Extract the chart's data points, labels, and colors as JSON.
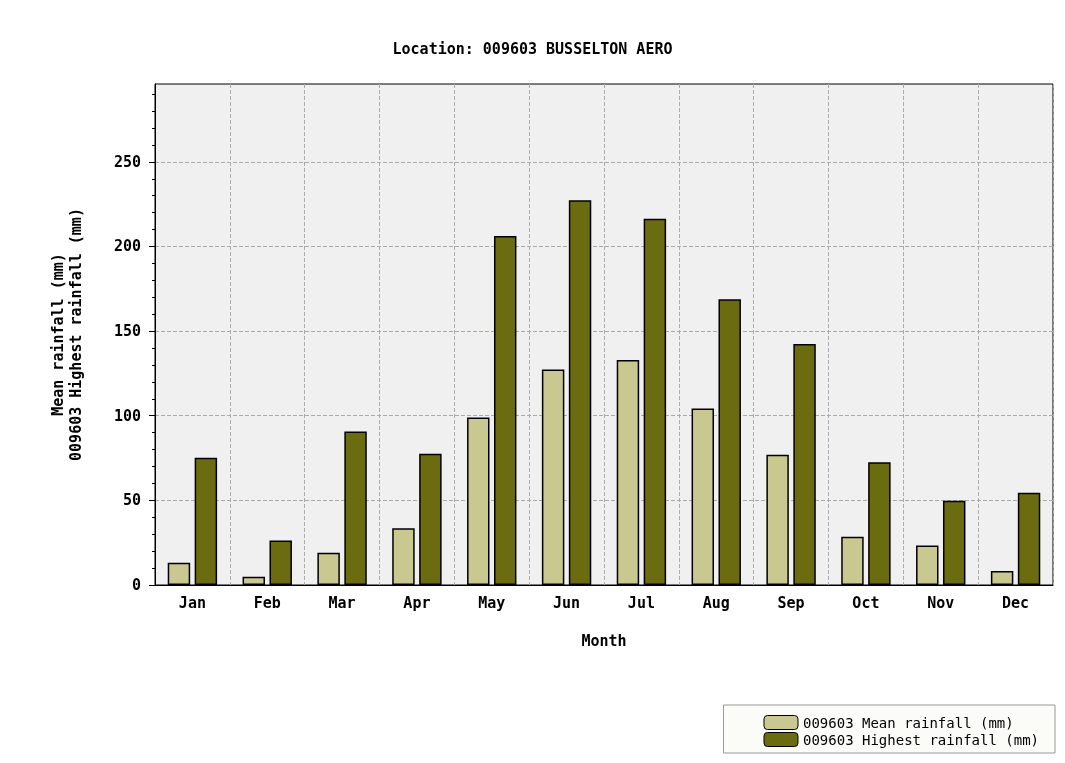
{
  "chart_data": {
    "type": "bar",
    "title": "Location: 009603 BUSSELTON AERO",
    "xlabel": "Month",
    "ylabel": "Mean rainfall (mm)\n009603 Highest rainfall (mm)",
    "categories": [
      "Jan",
      "Feb",
      "Mar",
      "Apr",
      "May",
      "Jun",
      "Jul",
      "Aug",
      "Sep",
      "Oct",
      "Nov",
      "Dec"
    ],
    "series": [
      {
        "name": "009603 Mean rainfall (mm)",
        "color": "#c8c890",
        "values": [
          13.2,
          4.9,
          19.1,
          33.6,
          99.0,
          127.3,
          133.0,
          104.3,
          77.0,
          28.5,
          23.4,
          8.2
        ]
      },
      {
        "name": "009603 Highest rainfall (mm)",
        "color": "#6b6b10",
        "values": [
          75.2,
          26.3,
          90.7,
          77.5,
          206.2,
          227.3,
          216.4,
          168.9,
          142.4,
          72.5,
          49.8,
          54.5
        ]
      }
    ],
    "ylim": [
      0,
      296
    ],
    "yticks": [
      0,
      50,
      100,
      150,
      200,
      250
    ],
    "grid": true,
    "legend": "bottom right"
  }
}
